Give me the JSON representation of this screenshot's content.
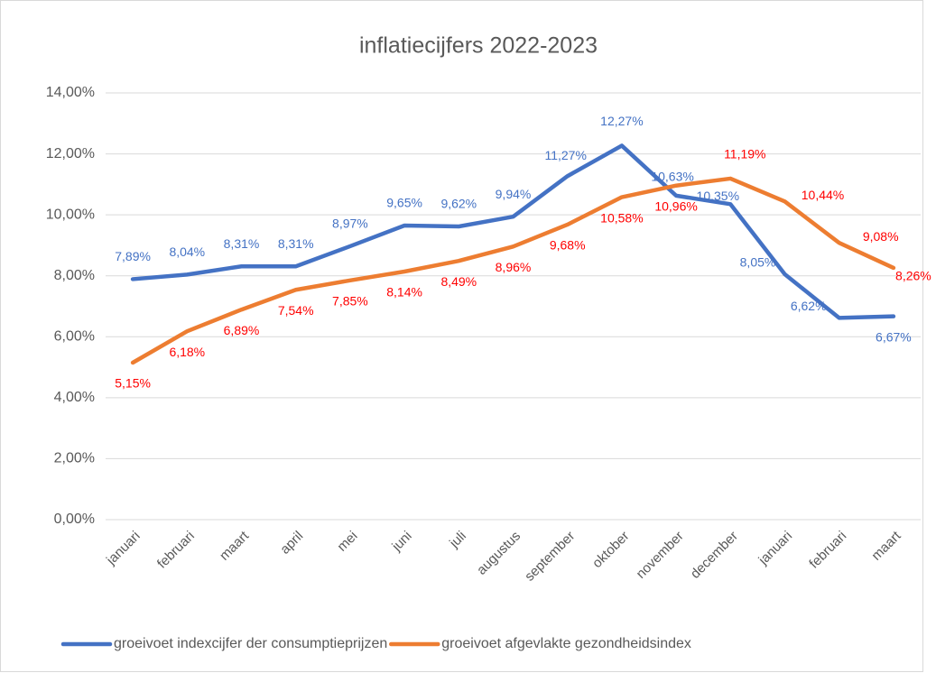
{
  "chart_data": {
    "type": "line",
    "title": "inflatiecijfers 2022-2023",
    "categories": [
      "januari",
      "februari",
      "maart",
      "april",
      "mei",
      "juni",
      "juli",
      "augustus",
      "september",
      "oktober",
      "november",
      "december",
      "januari",
      "februari",
      "maart"
    ],
    "series": [
      {
        "name": "groeivoet indexcijfer der consumptieprijzen",
        "color": "#4472c4",
        "label_color": "#4472c4",
        "values": [
          7.89,
          8.04,
          8.31,
          8.31,
          8.97,
          9.65,
          9.62,
          9.94,
          11.27,
          12.27,
          10.63,
          10.35,
          8.05,
          6.62,
          6.67
        ],
        "value_labels": [
          "7,89%",
          "8,04%",
          "8,31%",
          "8,31%",
          "8,97%",
          "9,65%",
          "9,62%",
          "9,94%",
          "11,27%",
          "12,27%",
          "10,63%",
          "10,35%",
          "8,05%",
          "6,62%",
          "6,67%"
        ]
      },
      {
        "name": "groeivoet afgevlakte gezondheidsindex",
        "color": "#ed7d31",
        "label_color": "#ff0000",
        "values": [
          5.15,
          6.18,
          6.89,
          7.54,
          7.85,
          8.14,
          8.49,
          8.96,
          9.68,
          10.58,
          10.96,
          11.19,
          10.44,
          9.08,
          8.26
        ],
        "value_labels": [
          "5,15%",
          "6,18%",
          "6,89%",
          "7,54%",
          "7,85%",
          "8,14%",
          "8,49%",
          "8,96%",
          "9,68%",
          "10,58%",
          "10,96%",
          "11,19%",
          "10,44%",
          "9,08%",
          "8,26%"
        ]
      }
    ],
    "ylim": [
      0,
      14
    ],
    "yticks": [
      {
        "value": 0,
        "label": "0,00%"
      },
      {
        "value": 2,
        "label": "2,00%"
      },
      {
        "value": 4,
        "label": "4,00%"
      },
      {
        "value": 6,
        "label": "6,00%"
      },
      {
        "value": 8,
        "label": "8,00%"
      },
      {
        "value": 10,
        "label": "10,00%"
      },
      {
        "value": 12,
        "label": "12,00%"
      },
      {
        "value": 14,
        "label": "14,00%"
      }
    ],
    "grid": true,
    "legend": "bottom"
  }
}
